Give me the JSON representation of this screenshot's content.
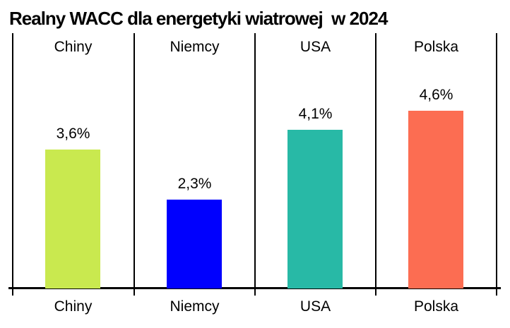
{
  "chart_data": {
    "type": "bar",
    "title": "Realny WACC dla energetyki wiatrowej  w 2024",
    "categories": [
      "Chiny",
      "Niemcy",
      "USA",
      "Polska"
    ],
    "values": [
      3.6,
      2.3,
      4.1,
      4.6
    ],
    "value_labels": [
      "3,6%",
      "2,3%",
      "4,1%",
      "4,6%"
    ],
    "colors": [
      "#c9e94f",
      "#0000fe",
      "#28b9a6",
      "#fc6d52"
    ],
    "unit": "%",
    "xlabel": "",
    "ylabel": "",
    "ylim": [
      0,
      6.6
    ],
    "grid": false,
    "legend_position": "none",
    "category_labels": "top-and-bottom",
    "value_label_position": "above-bar"
  }
}
